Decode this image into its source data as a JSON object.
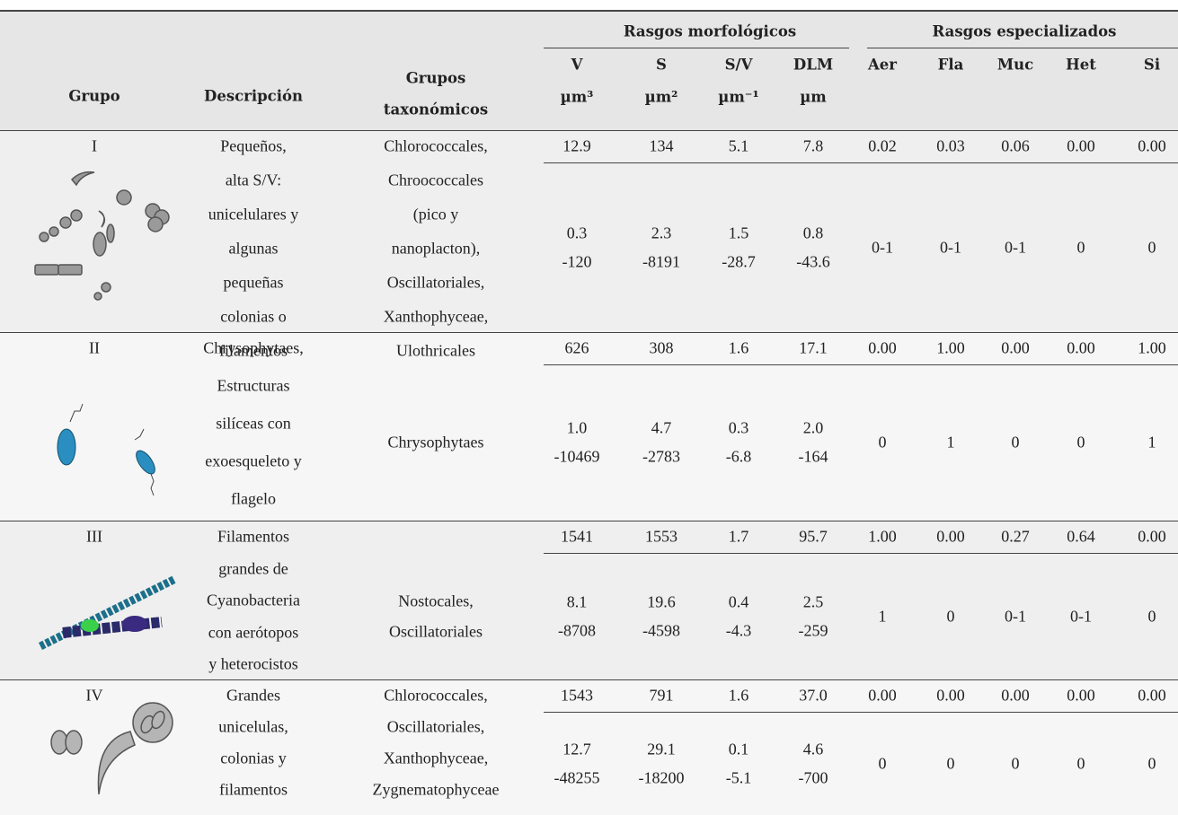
{
  "header": {
    "trait_groups": [
      "Rasgos morfológicos",
      "Rasgos especializados"
    ],
    "columns": {
      "group": "Grupo",
      "description": "Descripción",
      "taxa": [
        "Grupos",
        "taxonómicos"
      ]
    },
    "morph_columns": [
      {
        "name": "V",
        "unit": "µm³"
      },
      {
        "name": "S",
        "unit": "µm²"
      },
      {
        "name": "S/V",
        "unit": "µm⁻¹"
      },
      {
        "name": "DLM",
        "unit": "µm"
      }
    ],
    "spec_columns": [
      "Aer",
      "Fla",
      "Muc",
      "Het",
      "Si"
    ]
  },
  "groups": [
    {
      "id": "I",
      "description": [
        "Pequeños,",
        "alta S/V:",
        "unicelulares y",
        "algunas",
        "pequeñas",
        "colonias o",
        "filamentos"
      ],
      "taxa": [
        "Chlorococcales,",
        "Chroococcales",
        "(pico y",
        "nanoplacton),",
        "Oscillatoriales,",
        "Xanthophyceae,",
        "Ulothricales"
      ],
      "means": [
        "12.9",
        "134",
        "5.1",
        "7.8"
      ],
      "ranges": [
        [
          "0.3",
          "-120"
        ],
        [
          "2.3",
          "-8191"
        ],
        [
          "1.5",
          "-28.7"
        ],
        [
          "0.8",
          "-43.6"
        ]
      ],
      "spec_means": [
        "0.02",
        "0.03",
        "0.06",
        "0.00",
        "0.00"
      ],
      "spec_ranges": [
        "0-1",
        "0-1",
        "0-1",
        "0",
        "0"
      ]
    },
    {
      "id": "II",
      "description": [
        "Chrysophytaes,",
        "Estructuras",
        "silíceas con",
        "exoesqueleto y",
        "flagelo"
      ],
      "taxa": [
        "Chrysophytaes"
      ],
      "means": [
        "626",
        "308",
        "1.6",
        "17.1"
      ],
      "ranges": [
        [
          "1.0",
          "-10469"
        ],
        [
          "4.7",
          "-2783"
        ],
        [
          "0.3",
          "-6.8"
        ],
        [
          "2.0",
          "-164"
        ]
      ],
      "spec_means": [
        "0.00",
        "1.00",
        "0.00",
        "0.00",
        "1.00"
      ],
      "spec_ranges": [
        "0",
        "1",
        "0",
        "0",
        "1"
      ]
    },
    {
      "id": "III",
      "description": [
        "Filamentos",
        "grandes de",
        "Cyanobacteria",
        "con aerótopos",
        "y heterocistos"
      ],
      "taxa": [
        "Nostocales,",
        "Oscillatoriales"
      ],
      "means": [
        "1541",
        "1553",
        "1.7",
        "95.7"
      ],
      "ranges": [
        [
          "8.1",
          "-8708"
        ],
        [
          "19.6",
          "-4598"
        ],
        [
          "0.4",
          "-4.3"
        ],
        [
          "2.5",
          "-259"
        ]
      ],
      "spec_means": [
        "1.00",
        "0.00",
        "0.27",
        "0.64",
        "0.00"
      ],
      "spec_ranges": [
        "1",
        "0",
        "0-1",
        "0-1",
        "0"
      ]
    },
    {
      "id": "IV",
      "description": [
        "Grandes",
        "unicelulas,",
        "colonias y",
        "filamentos"
      ],
      "taxa": [
        "Chlorococcales,",
        "Oscillatoriales,",
        "Xanthophyceae,",
        "Zygnematophyceae"
      ],
      "means": [
        "1543",
        "791",
        "1.6",
        "37.0"
      ],
      "ranges": [
        [
          "12.7",
          "-48255"
        ],
        [
          "29.1",
          "-18200"
        ],
        [
          "0.1",
          "-5.1"
        ],
        [
          "4.6",
          "-700"
        ]
      ],
      "spec_means": [
        "0.00",
        "0.00",
        "0.00",
        "0.00",
        "0.00"
      ],
      "spec_ranges": [
        "0",
        "0",
        "0",
        "0",
        "0"
      ]
    }
  ]
}
